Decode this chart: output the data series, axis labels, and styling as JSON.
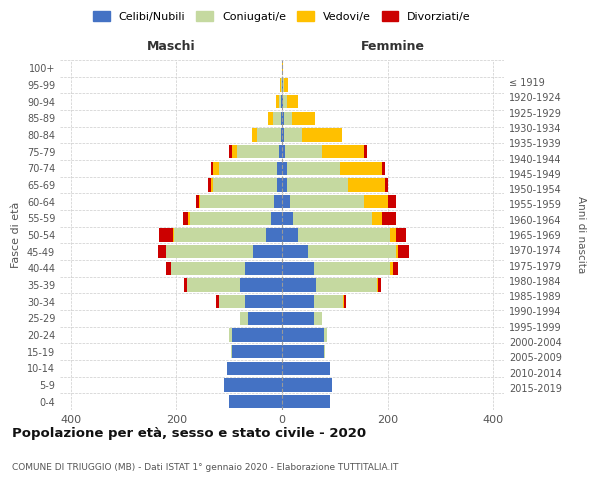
{
  "age_groups": [
    "0-4",
    "5-9",
    "10-14",
    "15-19",
    "20-24",
    "25-29",
    "30-34",
    "35-39",
    "40-44",
    "45-49",
    "50-54",
    "55-59",
    "60-64",
    "65-69",
    "70-74",
    "75-79",
    "80-84",
    "85-89",
    "90-94",
    "95-99",
    "100+"
  ],
  "birth_years": [
    "2015-2019",
    "2010-2014",
    "2005-2009",
    "2000-2004",
    "1995-1999",
    "1990-1994",
    "1985-1989",
    "1980-1984",
    "1975-1979",
    "1970-1974",
    "1965-1969",
    "1960-1964",
    "1955-1959",
    "1950-1954",
    "1945-1949",
    "1940-1944",
    "1935-1939",
    "1930-1934",
    "1925-1929",
    "1920-1924",
    "≤ 1919"
  ],
  "males": {
    "celibi": [
      100,
      110,
      105,
      95,
      95,
      65,
      70,
      80,
      70,
      55,
      30,
      20,
      15,
      10,
      10,
      5,
      2,
      2,
      1,
      0,
      0
    ],
    "coniugati": [
      0,
      0,
      0,
      2,
      5,
      15,
      50,
      100,
      140,
      165,
      175,
      155,
      140,
      120,
      110,
      80,
      45,
      15,
      5,
      2,
      0
    ],
    "vedovi": [
      0,
      0,
      0,
      0,
      0,
      0,
      0,
      0,
      0,
      0,
      2,
      2,
      2,
      5,
      10,
      10,
      10,
      10,
      5,
      2,
      0
    ],
    "divorziati": [
      0,
      0,
      0,
      0,
      0,
      0,
      5,
      5,
      10,
      15,
      25,
      10,
      5,
      5,
      5,
      5,
      0,
      0,
      0,
      0,
      0
    ]
  },
  "females": {
    "nubili": [
      90,
      95,
      90,
      80,
      80,
      60,
      60,
      65,
      60,
      50,
      30,
      20,
      15,
      10,
      10,
      5,
      3,
      3,
      2,
      1,
      0
    ],
    "coniugate": [
      0,
      0,
      0,
      2,
      5,
      15,
      55,
      115,
      145,
      165,
      175,
      150,
      140,
      115,
      100,
      70,
      35,
      15,
      8,
      3,
      0
    ],
    "vedove": [
      0,
      0,
      0,
      0,
      0,
      0,
      2,
      2,
      5,
      5,
      10,
      20,
      45,
      70,
      80,
      80,
      75,
      45,
      20,
      8,
      2
    ],
    "divorziate": [
      0,
      0,
      0,
      0,
      0,
      0,
      5,
      5,
      10,
      20,
      20,
      25,
      15,
      5,
      5,
      5,
      0,
      0,
      0,
      0,
      0
    ]
  },
  "colors": {
    "celibi_nubili": "#4472c4",
    "coniugati": "#c5d9a0",
    "vedovi": "#ffc000",
    "divorziati": "#cc0000"
  },
  "xlim": 420,
  "title": "Popolazione per età, sesso e stato civile - 2020",
  "subtitle": "COMUNE DI TRIUGGIO (MB) - Dati ISTAT 1° gennaio 2020 - Elaborazione TUTTITALIA.IT",
  "xlabel_left": "Maschi",
  "xlabel_right": "Femmine",
  "ylabel_left": "Fasce di età",
  "ylabel_right": "Anni di nascita",
  "background_color": "#ffffff",
  "grid_color": "#cccccc"
}
